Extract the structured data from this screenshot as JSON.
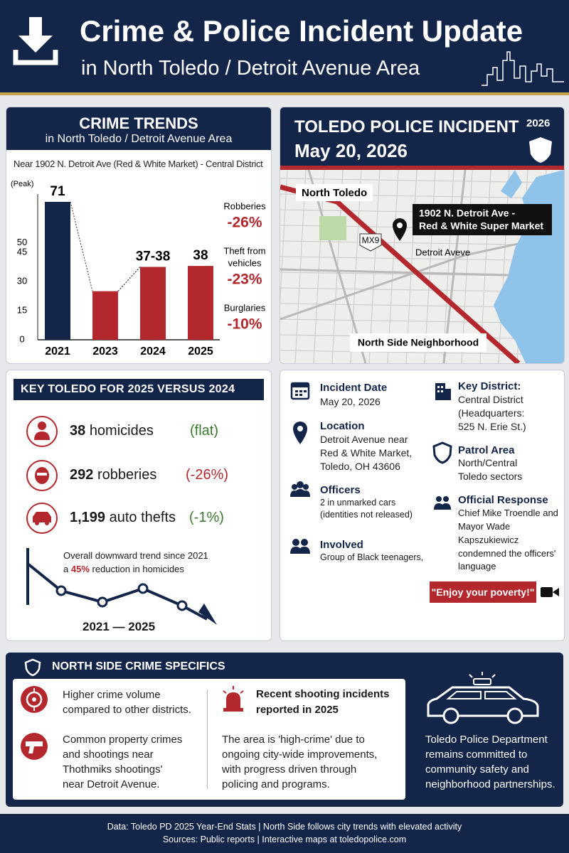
{
  "header": {
    "title": "Crime & Police Incident Update",
    "subtitle": "in North Toledo / Detroit Avenue Area"
  },
  "chart_data": {
    "type": "bar",
    "title": "CRIME TRENDS",
    "subtitle": "in North Toledo / Detroit Avenue Area",
    "note": "Near 1902 N. Detroit Ave (Red & White Market) - Central District",
    "y_label": "(Peak)",
    "categories": [
      "2021",
      "2023",
      "2024",
      "2025"
    ],
    "values": [
      71,
      25,
      37.5,
      38
    ],
    "value_labels": [
      "71",
      null,
      "37-38",
      "38"
    ],
    "colors": [
      "#14254a",
      "#b3282d",
      "#b3282d",
      "#b3282d"
    ],
    "ylim": [
      0,
      75
    ],
    "yticks": [
      0,
      15,
      30,
      45,
      50
    ]
  },
  "changes": [
    {
      "label": [
        "Robberies"
      ],
      "value": "-26%"
    },
    {
      "label": [
        "Theft from",
        "vehicles"
      ],
      "value": "-23%"
    },
    {
      "label": [
        "Burglaries"
      ],
      "value": "-10%"
    }
  ],
  "incident": {
    "title": "TOLEDO POLICE INCIDENT",
    "date": "May 20, 2026",
    "badge": "2026"
  },
  "map": {
    "area": "North Toledo",
    "address": [
      "1902 N. Detroit Ave -",
      "Red & White Super Market"
    ],
    "route": "MX9",
    "street": "Detroit Aveve",
    "neighborhood": "North Side Neighborhood"
  },
  "key_stats": {
    "title": "KEY TOLEDO FOR 2025 VERSUS 2024",
    "rows": [
      {
        "number": "38",
        "label": "homicides",
        "change": "(flat)"
      },
      {
        "number": "292",
        "label": "robberies",
        "change": "(-26%)"
      },
      {
        "number": "1,199",
        "label": "auto thefts",
        "change": "(-1%)"
      }
    ],
    "trend_line": "Overall downward trend since 2021",
    "trend_pre": "a",
    "trend_highlight": "45%",
    "trend_post": "reduction in homicides",
    "trend_range": "2021 — 2025"
  },
  "details": {
    "left": [
      {
        "heading": "Incident Date",
        "lines": [
          "May 20, 2026"
        ]
      },
      {
        "heading": "Location",
        "lines": [
          "Detroit Avenue near",
          "Red & White Market,",
          "Toledo, OH 43606"
        ]
      },
      {
        "heading": "Officers",
        "lines": [
          "2 in unmarked cars",
          "(identities not released)"
        ]
      },
      {
        "heading": "Involved",
        "lines": [
          "Group of Black teenagers,"
        ]
      }
    ],
    "right": [
      {
        "heading": "Key District:",
        "lines": [
          "Central District",
          "(Headquarters:",
          "525 N. Erie St.)"
        ]
      },
      {
        "heading": "Patrol Area",
        "lines": [
          "North/Central",
          "Toledo sectors"
        ]
      },
      {
        "heading": "Official Response",
        "lines": [
          "Chief Mike Troendle and",
          "Mayor Wade",
          "Kapszukiewicz",
          "condemned the officers'",
          "language"
        ]
      }
    ],
    "quote": "\"Enjoy your poverty!\""
  },
  "specifics": {
    "title": "NORTH SIDE CRIME SPECIFICS",
    "items": [
      {
        "lines": [
          "Higher crime volume",
          "compared to other districts."
        ]
      },
      {
        "lines": [
          "Common property crimes",
          "and shootings near",
          "Thothmiks shootings'",
          "near Detroit Avenue."
        ]
      }
    ],
    "shooting_heading": [
      "Recent shooting incidents",
      "reported in 2025"
    ],
    "shooting_text": [
      "The area is 'high-crime' due to",
      "ongoing city-wide improvements,",
      "with progress driven through",
      "policing and programs."
    ],
    "commitment": [
      "Toledo Police Department",
      "remains committed to",
      "community safety and",
      "neighborhood partnerships."
    ]
  },
  "footer": {
    "lines": [
      "Data: Toledo PD 2025 Year-End Stats | North Side follows city trends with elevated activity",
      "Sources: Public reports | Interactive maps at toledopolice.com"
    ]
  }
}
